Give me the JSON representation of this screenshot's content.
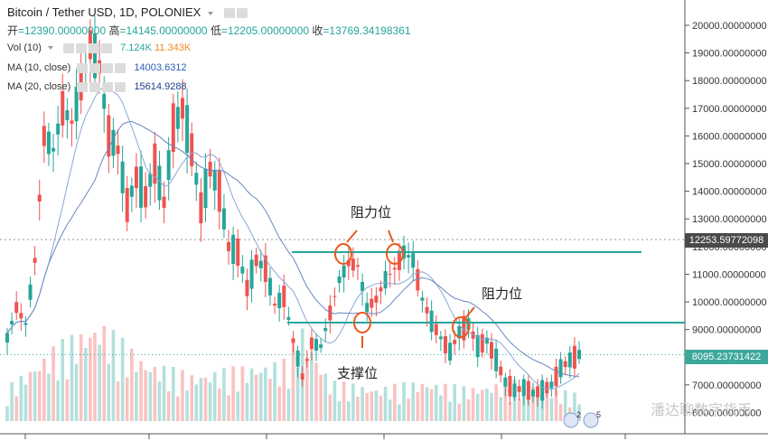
{
  "header": {
    "title": "Bitcoin / Tether USD, 1D, POLONIEX",
    "open_label": "开",
    "open": "=12390.00000000",
    "high_label": "高",
    "high": "=14145.00000000",
    "low_label": "低",
    "low": "=12205.00000000",
    "close_label": "收",
    "close": "=13769.34198361",
    "vol_label": "Vol (10)",
    "vol_v1": "7.124K",
    "vol_v2": "11.343K",
    "ma10_label": "MA (10, close)",
    "ma10_value": "14003.6312",
    "ma20_label": "MA (20, close)",
    "ma20_value": "15614.9288"
  },
  "price_boxes": {
    "crosshair": "12253.59772098",
    "last": "8095.23731422"
  },
  "annotations": {
    "resistance_1": "阻力位",
    "resistance_2": "阻力位",
    "support": "支撑位"
  },
  "watermark": "潘达聊数字货币",
  "badges": [
    "2",
    "5"
  ],
  "colors": {
    "up": "#26a69a",
    "down": "#ef5350",
    "hline": "#26a69a",
    "circle": "#e8591f",
    "box_dark": "#4a4a4a",
    "box_last": "#3aa89a"
  },
  "chart_data": {
    "type": "candlestick",
    "y_ticks": [
      "20000.00000000",
      "19000.00000000",
      "18000.00000000",
      "17000.00000000",
      "16000.00000000",
      "15000.00000000",
      "14000.00000000",
      "13000.00000000",
      "12000.00000000",
      "11000.00000000",
      "10000.00000000",
      "9000.00000000",
      "8000.00000000",
      "7000.00000000",
      "6000.00000000"
    ],
    "ylim": [
      5700,
      20300
    ],
    "horizontal_levels": [
      11800,
      9250
    ],
    "crosshair_price": 12253.6,
    "last_price": 8095.2,
    "key_points": [
      {
        "label": "resistance_1",
        "x": 0.31,
        "price": 11900
      },
      {
        "label": "resistance_2",
        "x": 0.44,
        "price": 11900
      },
      {
        "label": "support",
        "x": 0.36,
        "price": 9300
      },
      {
        "label": "resistance_3",
        "x": 0.59,
        "price": 9300
      }
    ],
    "price_path": [
      [
        0,
        8700
      ],
      [
        2,
        9800
      ],
      [
        4,
        9200
      ],
      [
        6,
        11500
      ],
      [
        8,
        16000
      ],
      [
        10,
        15500
      ],
      [
        12,
        17000
      ],
      [
        14,
        16500
      ],
      [
        16,
        17800
      ],
      [
        18,
        19300
      ],
      [
        20,
        18500
      ],
      [
        22,
        16000
      ],
      [
        24,
        15500
      ],
      [
        26,
        13500
      ],
      [
        28,
        14500
      ],
      [
        30,
        13800
      ],
      [
        32,
        15000
      ],
      [
        34,
        13600
      ],
      [
        36,
        16300
      ],
      [
        38,
        17000
      ],
      [
        40,
        15500
      ],
      [
        42,
        13400
      ],
      [
        44,
        14800
      ],
      [
        46,
        14000
      ],
      [
        48,
        12000
      ],
      [
        50,
        11800
      ],
      [
        52,
        10500
      ],
      [
        54,
        11500
      ],
      [
        56,
        11200
      ],
      [
        58,
        9900
      ],
      [
        60,
        10200
      ],
      [
        62,
        8600
      ],
      [
        64,
        7300
      ],
      [
        66,
        8500
      ],
      [
        68,
        8400
      ],
      [
        70,
        9600
      ],
      [
        72,
        10800
      ],
      [
        74,
        11400
      ],
      [
        76,
        11300
      ],
      [
        78,
        9800
      ],
      [
        80,
        10100
      ],
      [
        82,
        10800
      ],
      [
        84,
        11200
      ],
      [
        86,
        11800
      ],
      [
        88,
        11500
      ],
      [
        90,
        10100
      ],
      [
        92,
        9300
      ],
      [
        94,
        8700
      ],
      [
        96,
        8200
      ],
      [
        98,
        8900
      ],
      [
        100,
        9200
      ],
      [
        102,
        8400
      ],
      [
        104,
        8600
      ],
      [
        106,
        7900
      ],
      [
        108,
        7100
      ],
      [
        110,
        6800
      ],
      [
        112,
        6900
      ],
      [
        114,
        6700
      ],
      [
        116,
        6800
      ],
      [
        118,
        7000
      ],
      [
        120,
        7600
      ],
      [
        122,
        7900
      ],
      [
        124,
        8100
      ]
    ],
    "volume_path": [
      [
        0,
        0.25
      ],
      [
        10,
        0.55
      ],
      [
        20,
        0.75
      ],
      [
        30,
        0.45
      ],
      [
        40,
        0.35
      ],
      [
        50,
        0.4
      ],
      [
        60,
        0.45
      ],
      [
        62,
        0.6
      ],
      [
        64,
        0.7
      ],
      [
        70,
        0.3
      ],
      [
        80,
        0.25
      ],
      [
        90,
        0.3
      ],
      [
        100,
        0.25
      ],
      [
        110,
        0.3
      ],
      [
        124,
        0.2
      ]
    ]
  }
}
